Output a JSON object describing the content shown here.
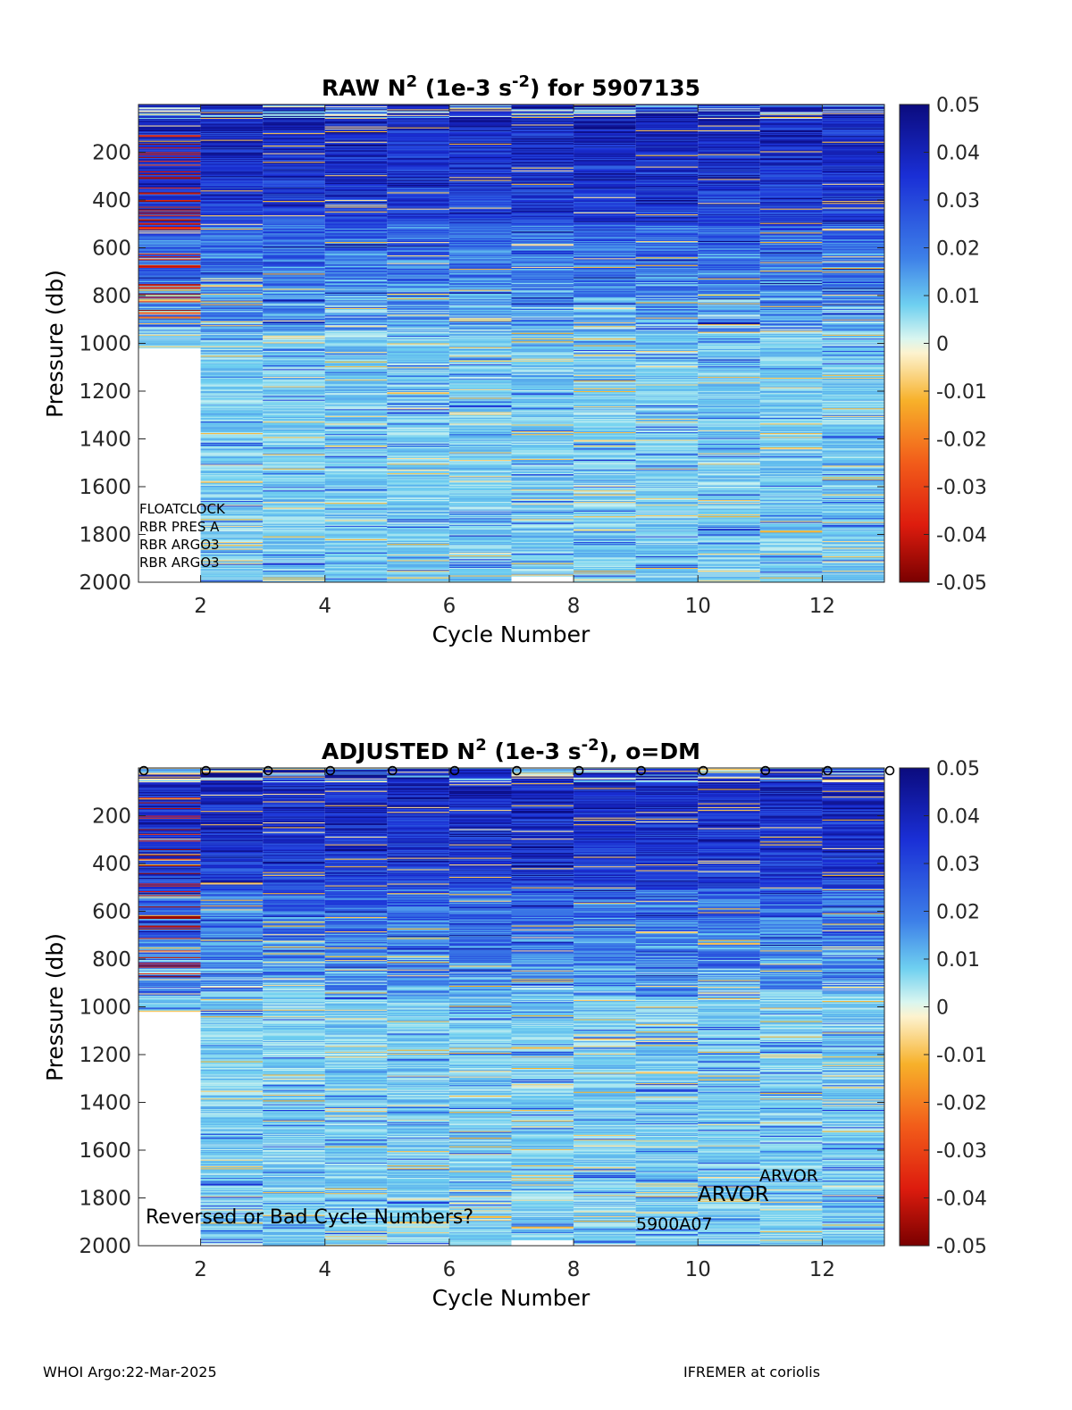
{
  "chart_data": [
    {
      "type": "heatmap",
      "title": "RAW N",
      "title_sup1": "2",
      "title_mid": " (1e-3 s",
      "title_sup2": "-2",
      "title_end": ") for 5907135",
      "xlabel": "Cycle Number",
      "ylabel": "Pressure (db)",
      "xlim": [
        1,
        13
      ],
      "ylim": [
        2000,
        0
      ],
      "xticks": [
        "2",
        "4",
        "6",
        "8",
        "10",
        "12"
      ],
      "yticks": [
        "200",
        "400",
        "600",
        "800",
        "1000",
        "1200",
        "1400",
        "1600",
        "1800",
        "2000"
      ],
      "cycles": [
        1,
        2,
        3,
        4,
        5,
        6,
        7,
        8,
        9,
        10,
        11,
        12
      ],
      "profile_max_pressure": [
        1020,
        2000,
        2000,
        2000,
        2000,
        2000,
        1975,
        2000,
        2000,
        2000,
        2000,
        2000
      ],
      "colorbar": {
        "min": -0.05,
        "max": 0.05,
        "ticks": [
          "0.05",
          "0.04",
          "0.03",
          "0.02",
          "0.01",
          "0",
          "-0.01",
          "-0.02",
          "-0.03",
          "-0.04",
          "-0.05"
        ]
      },
      "annotations": [
        "FLOATCLOCK",
        "RBR PRES A",
        "RBR ARGO3",
        "RBR ARGO3"
      ],
      "dm_markers": false
    },
    {
      "type": "heatmap",
      "title": "ADJUSTED N",
      "title_sup1": "2",
      "title_mid": " (1e-3 s",
      "title_sup2": "-2",
      "title_end": "), o=DM",
      "xlabel": "Cycle Number",
      "ylabel": "Pressure (db)",
      "xlim": [
        1,
        13
      ],
      "ylim": [
        2000,
        0
      ],
      "xticks": [
        "2",
        "4",
        "6",
        "8",
        "10",
        "12"
      ],
      "yticks": [
        "200",
        "400",
        "600",
        "800",
        "1000",
        "1200",
        "1400",
        "1600",
        "1800",
        "2000"
      ],
      "cycles": [
        1,
        2,
        3,
        4,
        5,
        6,
        7,
        8,
        9,
        10,
        11,
        12
      ],
      "profile_max_pressure": [
        1020,
        1990,
        2000,
        2000,
        1990,
        2000,
        1975,
        1990,
        2000,
        2000,
        2000,
        2000
      ],
      "dm_cycles": [
        1,
        2,
        3,
        4,
        5,
        6,
        7,
        8,
        9,
        10,
        11,
        12,
        13
      ],
      "colorbar": {
        "min": -0.05,
        "max": 0.05,
        "ticks": [
          "0.05",
          "0.04",
          "0.03",
          "0.02",
          "0.01",
          "0",
          "-0.01",
          "-0.02",
          "-0.03",
          "-0.04",
          "-0.05"
        ]
      },
      "annotations_bottom": {
        "warning": "Reversed or Bad Cycle Numbers?",
        "arvor_small": "ARVOR",
        "arvor_large": "ARVOR",
        "model": "5900A07"
      },
      "dm_markers": true
    }
  ],
  "footer": {
    "left": "WHOI Argo:22-Mar-2025",
    "right": "IFREMER at coriolis"
  }
}
